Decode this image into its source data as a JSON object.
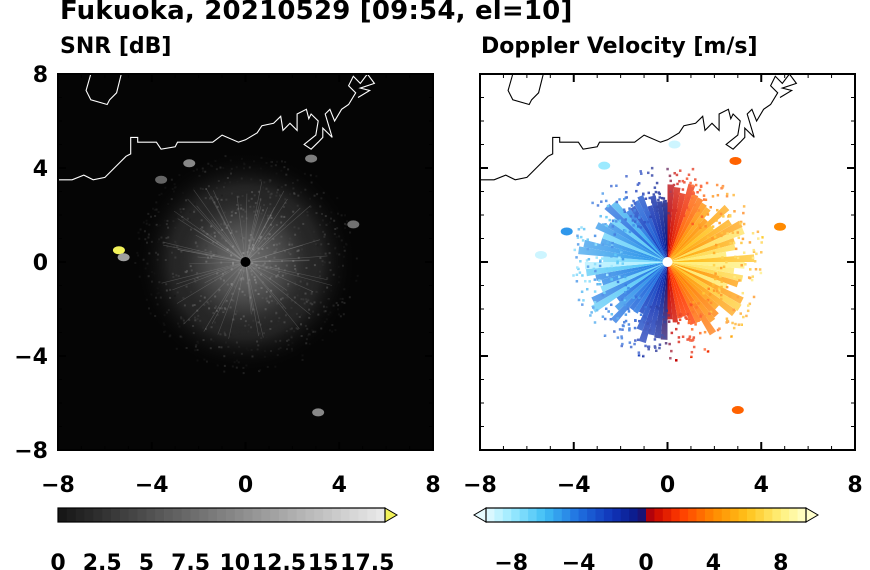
{
  "figure": {
    "title": "Fukuoka, 20210529 [09:54, el=10]"
  },
  "chart_data": [
    {
      "type": "heatmap",
      "title": "SNR [dB]",
      "xlim": [
        -8,
        8
      ],
      "ylim": [
        -8,
        8
      ],
      "xticks": [
        "−8",
        "−4",
        "0",
        "4",
        "8"
      ],
      "yticks": [
        "8",
        "4",
        "0",
        "−4",
        "−8"
      ],
      "background": "#050505",
      "center": [
        0,
        0
      ],
      "echo_radius": 3.2,
      "echoes": [
        {
          "x": -5.4,
          "y": 0.5,
          "value": 18
        },
        {
          "x": -5.2,
          "y": 0.2,
          "value": 12
        },
        {
          "x": -2.4,
          "y": 4.2,
          "value": 10
        },
        {
          "x": 2.8,
          "y": 4.4,
          "value": 9
        },
        {
          "x": 4.6,
          "y": 1.6,
          "value": 8
        },
        {
          "x": 3.1,
          "y": -6.4,
          "value": 10
        },
        {
          "x": -3.6,
          "y": 3.5,
          "value": 7
        }
      ],
      "colorbar": {
        "ticks": [
          "0",
          "2.5",
          "5",
          "7.5",
          "10",
          "12.5",
          "15",
          "17.5"
        ],
        "min": 0,
        "max": 18.5,
        "extend": "max"
      }
    },
    {
      "type": "heatmap",
      "title": "Doppler Velocity [m/s]",
      "xlim": [
        -8,
        8
      ],
      "ylim": [
        -8,
        8
      ],
      "xticks": [
        "−8",
        "−4",
        "0",
        "4",
        "8"
      ],
      "yticks": [
        "8",
        "4",
        "0",
        "−4",
        "−8"
      ],
      "background": "#ffffff",
      "center": [
        0,
        0
      ],
      "echo_radius": 3.2,
      "negative_side": "west",
      "echoes": [
        {
          "x": -2.7,
          "y": 4.1,
          "value": -8
        },
        {
          "x": -4.3,
          "y": 1.3,
          "value": -5
        },
        {
          "x": -5.4,
          "y": 0.3,
          "value": -9
        },
        {
          "x": 2.9,
          "y": 4.3,
          "value": 3
        },
        {
          "x": 4.8,
          "y": 1.5,
          "value": 4
        },
        {
          "x": 3.0,
          "y": -6.3,
          "value": 3
        },
        {
          "x": 0.3,
          "y": 5.0,
          "value": -9
        }
      ],
      "colorbar": {
        "ticks": [
          "−8",
          "−4",
          "0",
          "4",
          "8"
        ],
        "min": -9.5,
        "max": 9.5,
        "extend": "both"
      }
    }
  ],
  "coastline": [
    [
      [
        -8,
        3.5
      ],
      [
        -7.4,
        3.5
      ],
      [
        -6.9,
        3.7
      ],
      [
        -6.5,
        3.5
      ],
      [
        -6.0,
        3.6
      ],
      [
        -5.6,
        4.0
      ],
      [
        -5.1,
        4.5
      ],
      [
        -4.9,
        4.6
      ],
      [
        -4.9,
        5.3
      ],
      [
        -4.6,
        5.3
      ],
      [
        -4.6,
        5.1
      ],
      [
        -3.8,
        5.1
      ],
      [
        -3.6,
        4.8
      ],
      [
        -3.0,
        4.9
      ],
      [
        -2.9,
        5.1
      ],
      [
        -1.4,
        5.1
      ],
      [
        -1.0,
        5.4
      ],
      [
        -0.3,
        5.1
      ],
      [
        0.0,
        5.2
      ],
      [
        0.5,
        5.5
      ],
      [
        0.7,
        5.8
      ],
      [
        1.2,
        5.9
      ],
      [
        1.5,
        6.2
      ],
      [
        1.6,
        5.6
      ],
      [
        1.9,
        5.9
      ],
      [
        2.2,
        5.6
      ],
      [
        2.2,
        6.3
      ],
      [
        2.6,
        6.5
      ],
      [
        2.7,
        6.1
      ],
      [
        2.8,
        6.3
      ],
      [
        3.1,
        6.0
      ],
      [
        3.0,
        5.4
      ],
      [
        2.5,
        5.0
      ],
      [
        2.8,
        4.8
      ],
      [
        3.1,
        5.1
      ],
      [
        3.3,
        5.3
      ],
      [
        3.3,
        5.7
      ],
      [
        3.7,
        5.3
      ],
      [
        3.4,
        6.3
      ],
      [
        3.6,
        6.5
      ],
      [
        3.8,
        6.0
      ],
      [
        4.1,
        6.5
      ],
      [
        4.4,
        6.7
      ],
      [
        4.7,
        7.2
      ],
      [
        4.4,
        7.5
      ],
      [
        4.6,
        7.9
      ],
      [
        4.9,
        7.6
      ],
      [
        5.2,
        8.0
      ],
      [
        5.5,
        7.6
      ],
      [
        4.9,
        7.4
      ],
      [
        5.3,
        7.3
      ],
      [
        4.8,
        7.0
      ]
    ],
    [
      [
        -6.6,
        8
      ],
      [
        -6.8,
        7.3
      ],
      [
        -6.6,
        6.9
      ],
      [
        -5.9,
        6.7
      ],
      [
        -5.8,
        6.9
      ],
      [
        -5.5,
        7.2
      ],
      [
        -5.3,
        8
      ]
    ]
  ]
}
